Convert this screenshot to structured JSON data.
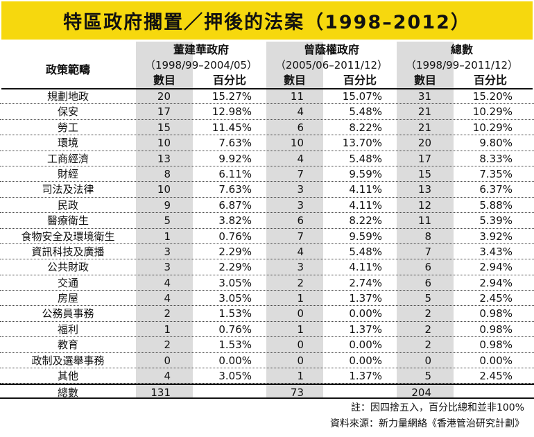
{
  "title": "特區政府擱置／押後的法案（1998–2012）",
  "header": {
    "category_label": "政策範疇",
    "groups": [
      {
        "name": "董建華政府",
        "period": "（1998/99–2004/05）"
      },
      {
        "name": "曾蔭權政府",
        "period": "（2005/06–2011/12）"
      },
      {
        "name": "總數",
        "period": "（1998/99–2011/12）"
      }
    ],
    "count_label": "數目",
    "percent_label": "百分比"
  },
  "rows": [
    {
      "category": "規劃地政",
      "tung_count": "20",
      "tung_pct": "15.27%",
      "tsang_count": "11",
      "tsang_pct": "15.07%",
      "total_count": "31",
      "total_pct": "15.20%"
    },
    {
      "category": "保安",
      "tung_count": "17",
      "tung_pct": "12.98%",
      "tsang_count": "4",
      "tsang_pct": "5.48%",
      "total_count": "21",
      "total_pct": "10.29%"
    },
    {
      "category": "勞工",
      "tung_count": "15",
      "tung_pct": "11.45%",
      "tsang_count": "6",
      "tsang_pct": "8.22%",
      "total_count": "21",
      "total_pct": "10.29%"
    },
    {
      "category": "環境",
      "tung_count": "10",
      "tung_pct": "7.63%",
      "tsang_count": "10",
      "tsang_pct": "13.70%",
      "total_count": "20",
      "total_pct": "9.80%"
    },
    {
      "category": "工商經濟",
      "tung_count": "13",
      "tung_pct": "9.92%",
      "tsang_count": "4",
      "tsang_pct": "5.48%",
      "total_count": "17",
      "total_pct": "8.33%"
    },
    {
      "category": "財經",
      "tung_count": "8",
      "tung_pct": "6.11%",
      "tsang_count": "7",
      "tsang_pct": "9.59%",
      "total_count": "15",
      "total_pct": "7.35%"
    },
    {
      "category": "司法及法律",
      "tung_count": "10",
      "tung_pct": "7.63%",
      "tsang_count": "3",
      "tsang_pct": "4.11%",
      "total_count": "13",
      "total_pct": "6.37%"
    },
    {
      "category": "民政",
      "tung_count": "9",
      "tung_pct": "6.87%",
      "tsang_count": "3",
      "tsang_pct": "4.11%",
      "total_count": "12",
      "total_pct": "5.88%"
    },
    {
      "category": "醫療衛生",
      "tung_count": "5",
      "tung_pct": "3.82%",
      "tsang_count": "6",
      "tsang_pct": "8.22%",
      "total_count": "11",
      "total_pct": "5.39%"
    },
    {
      "category": "食物安全及環境衛生",
      "tung_count": "1",
      "tung_pct": "0.76%",
      "tsang_count": "7",
      "tsang_pct": "9.59%",
      "total_count": "8",
      "total_pct": "3.92%"
    },
    {
      "category": "資訊科技及廣播",
      "tung_count": "3",
      "tung_pct": "2.29%",
      "tsang_count": "4",
      "tsang_pct": "5.48%",
      "total_count": "7",
      "total_pct": "3.43%"
    },
    {
      "category": "公共財政",
      "tung_count": "3",
      "tung_pct": "2.29%",
      "tsang_count": "3",
      "tsang_pct": "4.11%",
      "total_count": "6",
      "total_pct": "2.94%"
    },
    {
      "category": "交通",
      "tung_count": "4",
      "tung_pct": "3.05%",
      "tsang_count": "2",
      "tsang_pct": "2.74%",
      "total_count": "6",
      "total_pct": "2.94%"
    },
    {
      "category": "房屋",
      "tung_count": "4",
      "tung_pct": "3.05%",
      "tsang_count": "1",
      "tsang_pct": "1.37%",
      "total_count": "5",
      "total_pct": "2.45%"
    },
    {
      "category": "公務員事務",
      "tung_count": "2",
      "tung_pct": "1.53%",
      "tsang_count": "0",
      "tsang_pct": "0.00%",
      "total_count": "2",
      "total_pct": "0.98%"
    },
    {
      "category": "福利",
      "tung_count": "1",
      "tung_pct": "0.76%",
      "tsang_count": "1",
      "tsang_pct": "1.37%",
      "total_count": "2",
      "total_pct": "0.98%"
    },
    {
      "category": "教育",
      "tung_count": "2",
      "tung_pct": "1.53%",
      "tsang_count": "0",
      "tsang_pct": "0.00%",
      "total_count": "2",
      "total_pct": "0.98%"
    },
    {
      "category": "政制及選舉事務",
      "tung_count": "0",
      "tung_pct": "0.00%",
      "tsang_count": "0",
      "tsang_pct": "0.00%",
      "total_count": "0",
      "total_pct": "0.00%"
    },
    {
      "category": "其他",
      "tung_count": "4",
      "tung_pct": "3.05%",
      "tsang_count": "1",
      "tsang_pct": "1.37%",
      "total_count": "5",
      "total_pct": "2.45%"
    }
  ],
  "total_row": {
    "category": "總數",
    "tung_count": "131",
    "tsang_count": "73",
    "total_count": "204"
  },
  "notes": {
    "rounding": "註：因四捨五入，百分比總和並非100%",
    "source": "資料來源：新力量網絡《香港管治研究計劃》"
  }
}
